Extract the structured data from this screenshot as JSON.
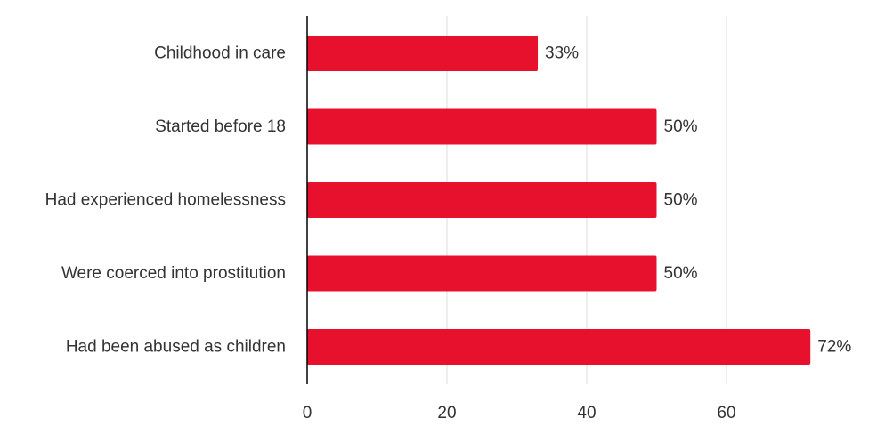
{
  "chart_data": {
    "type": "bar",
    "orientation": "horizontal",
    "categories": [
      "Childhood in care",
      "Started before 18",
      "Had experienced homelessness",
      "Were coerced into prostitution",
      "Had been abused as children"
    ],
    "values": [
      33,
      50,
      50,
      50,
      72
    ],
    "value_labels": [
      "33%",
      "50%",
      "50%",
      "50%",
      "72%"
    ],
    "xlim": [
      0,
      75
    ],
    "xticks": [
      0,
      20,
      40,
      60
    ],
    "xtick_labels": [
      "0",
      "20",
      "40",
      "60"
    ],
    "grid": "vertical",
    "legend": "none",
    "title": "",
    "xlabel": "",
    "ylabel": "",
    "colors": {
      "bar": "#e8112d",
      "grid": "#dddddd",
      "axis": "#000000",
      "text": "#333333"
    }
  }
}
